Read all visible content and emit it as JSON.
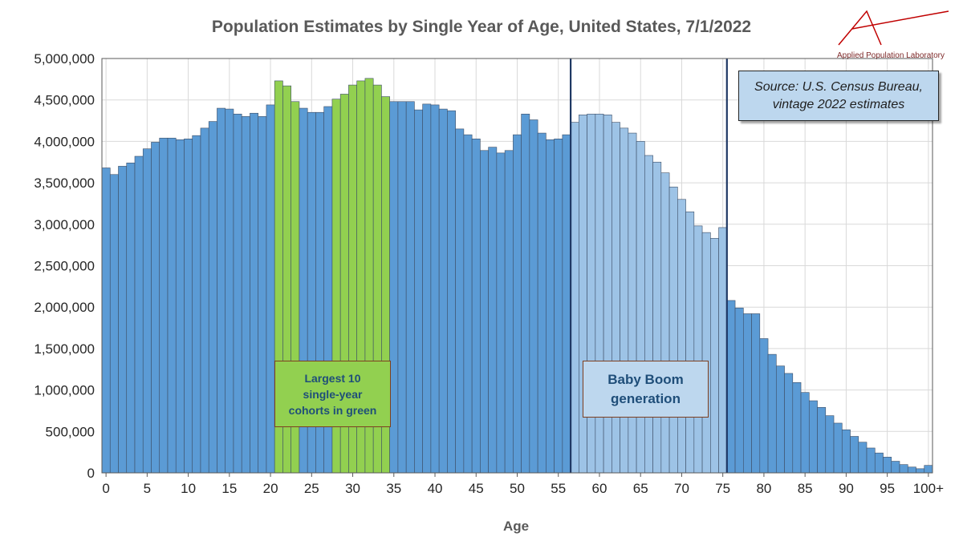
{
  "chart_data": {
    "type": "bar",
    "title": "Population Estimates by Single Year of Age, United States, 7/1/2022",
    "xlabel": "Age",
    "ylabel": "",
    "ylim": [
      0,
      5000000
    ],
    "yticks": [
      "0",
      "500,000",
      "1,000,000",
      "1,500,000",
      "2,000,000",
      "2,500,000",
      "3,000,000",
      "3,500,000",
      "4,000,000",
      "4,500,000",
      "5,000,000"
    ],
    "xticks": [
      {
        "age": 0,
        "label": "0"
      },
      {
        "age": 5,
        "label": "5"
      },
      {
        "age": 10,
        "label": "10"
      },
      {
        "age": 15,
        "label": "15"
      },
      {
        "age": 20,
        "label": "20"
      },
      {
        "age": 25,
        "label": "25"
      },
      {
        "age": 30,
        "label": "30"
      },
      {
        "age": 35,
        "label": "35"
      },
      {
        "age": 40,
        "label": "40"
      },
      {
        "age": 45,
        "label": "45"
      },
      {
        "age": 50,
        "label": "50"
      },
      {
        "age": 55,
        "label": "55"
      },
      {
        "age": 60,
        "label": "60"
      },
      {
        "age": 65,
        "label": "65"
      },
      {
        "age": 70,
        "label": "70"
      },
      {
        "age": 75,
        "label": "75"
      },
      {
        "age": 80,
        "label": "80"
      },
      {
        "age": 85,
        "label": "85"
      },
      {
        "age": 90,
        "label": "90"
      },
      {
        "age": 95,
        "label": "95"
      },
      {
        "age": 100,
        "label": "100+"
      }
    ],
    "values": [
      3680000,
      3600000,
      3700000,
      3740000,
      3820000,
      3910000,
      3990000,
      4040000,
      4040000,
      4020000,
      4030000,
      4070000,
      4160000,
      4240000,
      4400000,
      4390000,
      4330000,
      4300000,
      4340000,
      4300000,
      4440000,
      4730000,
      4670000,
      4480000,
      4400000,
      4350000,
      4350000,
      4420000,
      4510000,
      4570000,
      4680000,
      4730000,
      4760000,
      4680000,
      4540000,
      4480000,
      4480000,
      4480000,
      4380000,
      4450000,
      4440000,
      4390000,
      4370000,
      4150000,
      4080000,
      4030000,
      3890000,
      3930000,
      3860000,
      3890000,
      4080000,
      4330000,
      4260000,
      4100000,
      4020000,
      4030000,
      4080000,
      4230000,
      4320000,
      4330000,
      4330000,
      4320000,
      4230000,
      4160000,
      4100000,
      4000000,
      3830000,
      3750000,
      3620000,
      3450000,
      3300000,
      3150000,
      2980000,
      2900000,
      2830000,
      2960000,
      2080000,
      1990000,
      1920000,
      1920000,
      1620000,
      1430000,
      1290000,
      1200000,
      1090000,
      970000,
      870000,
      790000,
      690000,
      600000,
      520000,
      440000,
      370000,
      300000,
      240000,
      190000,
      140000,
      100000,
      70000,
      50000,
      90000
    ],
    "colors": {
      "default": "#5b9bd5",
      "largest_cohorts": "#92d050",
      "baby_boom": "#9dc3e6",
      "bar_border": "#3d4e66",
      "grid": "#d9d9d9",
      "marker_line": "#1f3864"
    },
    "largest_cohort_ages": [
      21,
      22,
      23,
      28,
      29,
      30,
      31,
      32,
      33,
      34
    ],
    "baby_boom_ages": [
      57,
      76
    ],
    "annotations": {
      "source_line1": "Source: U.S. Census Bureau,",
      "source_line2": "vintage 2022 estimates",
      "green_line1": "Largest 10",
      "green_line2": "single-year",
      "green_line3": "cohorts in green",
      "boom_line1": "Baby Boom",
      "boom_line2": "generation"
    },
    "grid": true,
    "legend": "none"
  },
  "logo": {
    "text": "Applied Population Laboratory",
    "color": "#c00000"
  }
}
